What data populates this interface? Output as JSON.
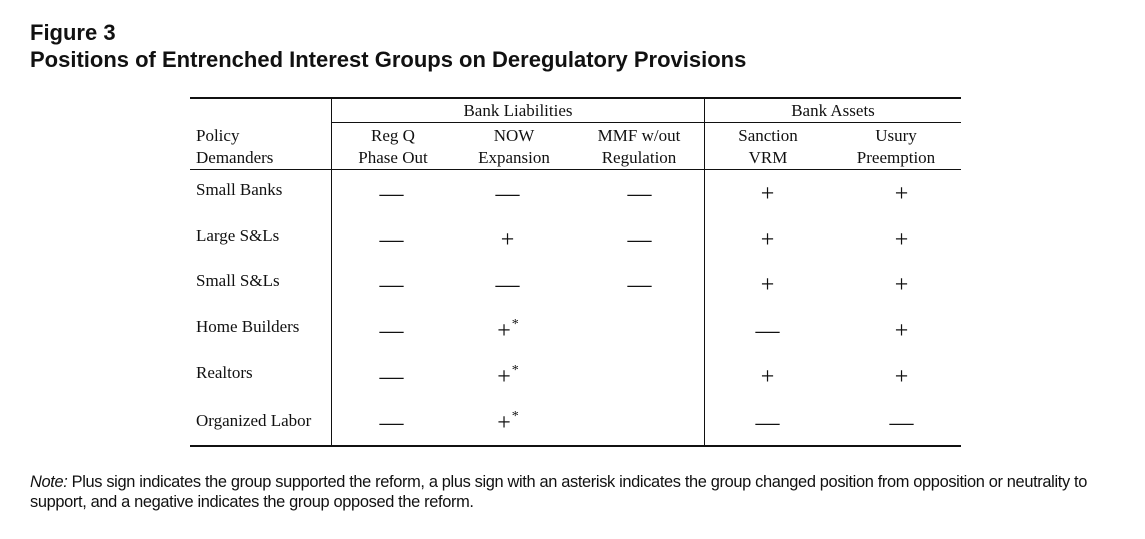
{
  "figure": {
    "label": "Figure 3",
    "title": "Positions of Entrenched Interest Groups on Deregulatory Provisions"
  },
  "table": {
    "groups": [
      {
        "label": "Bank Liabilities"
      },
      {
        "label": "Bank Assets"
      }
    ],
    "row_header": {
      "line1": "Policy",
      "line2": "Demanders"
    },
    "columns": [
      {
        "line1": "Reg Q",
        "line2": "Phase Out"
      },
      {
        "line1": "NOW",
        "line2": "Expansion"
      },
      {
        "line1": "MMF w/out",
        "line2": "Regulation"
      },
      {
        "line1": "Sanction",
        "line2": "VRM"
      },
      {
        "line1": "Usury",
        "line2": "Preemption"
      }
    ],
    "rows": [
      {
        "label": "Small Banks",
        "cells": [
          {
            "sym": "—",
            "star": ""
          },
          {
            "sym": "—",
            "star": ""
          },
          {
            "sym": "—",
            "star": ""
          },
          {
            "sym": "+",
            "star": ""
          },
          {
            "sym": "+",
            "star": ""
          }
        ]
      },
      {
        "label": "Large S&Ls",
        "cells": [
          {
            "sym": "—",
            "star": ""
          },
          {
            "sym": "+",
            "star": ""
          },
          {
            "sym": "—",
            "star": ""
          },
          {
            "sym": "+",
            "star": ""
          },
          {
            "sym": "+",
            "star": ""
          }
        ]
      },
      {
        "label": "Small S&Ls",
        "cells": [
          {
            "sym": "—",
            "star": ""
          },
          {
            "sym": "—",
            "star": ""
          },
          {
            "sym": "—",
            "star": ""
          },
          {
            "sym": "+",
            "star": ""
          },
          {
            "sym": "+",
            "star": ""
          }
        ]
      },
      {
        "label": "Home Builders",
        "cells": [
          {
            "sym": "—",
            "star": ""
          },
          {
            "sym": "+",
            "star": "*"
          },
          {
            "sym": "",
            "star": ""
          },
          {
            "sym": "—",
            "star": ""
          },
          {
            "sym": "+",
            "star": ""
          }
        ]
      },
      {
        "label": "Realtors",
        "cells": [
          {
            "sym": "—",
            "star": ""
          },
          {
            "sym": "+",
            "star": "*"
          },
          {
            "sym": "",
            "star": ""
          },
          {
            "sym": "+",
            "star": ""
          },
          {
            "sym": "+",
            "star": ""
          }
        ]
      },
      {
        "label": "Organized Labor",
        "cells": [
          {
            "sym": "—",
            "star": ""
          },
          {
            "sym": "+",
            "star": "*"
          },
          {
            "sym": "",
            "star": ""
          },
          {
            "sym": "—",
            "star": ""
          },
          {
            "sym": "—",
            "star": ""
          }
        ]
      }
    ]
  },
  "note": {
    "prefix": "Note:",
    "text": " Plus sign indicates the group supported the reform, a plus sign with an asterisk indicates the group changed position from opposition or neutrality to support, and a negative indicates the group opposed the reform."
  }
}
